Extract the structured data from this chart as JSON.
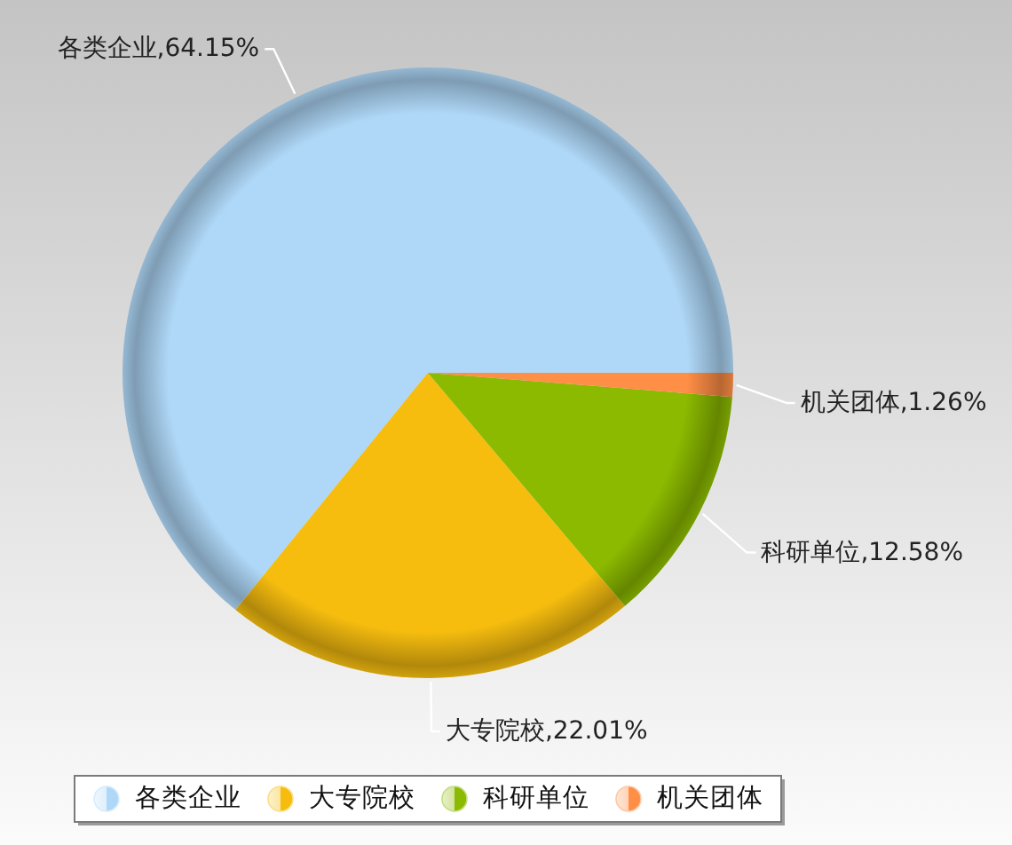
{
  "chart_data": {
    "type": "pie",
    "categories": [
      "各类企业",
      "大专院校",
      "科研单位",
      "机关团体"
    ],
    "values": [
      64.15,
      22.01,
      12.58,
      1.26
    ],
    "value_labels": [
      ",64.15%",
      ",22.01%",
      ",12.58%",
      ",1.26%"
    ],
    "colors": [
      "#afd8f8",
      "#f6bd0f",
      "#8bba00",
      "#ff8e46"
    ],
    "legend": "bottom"
  }
}
